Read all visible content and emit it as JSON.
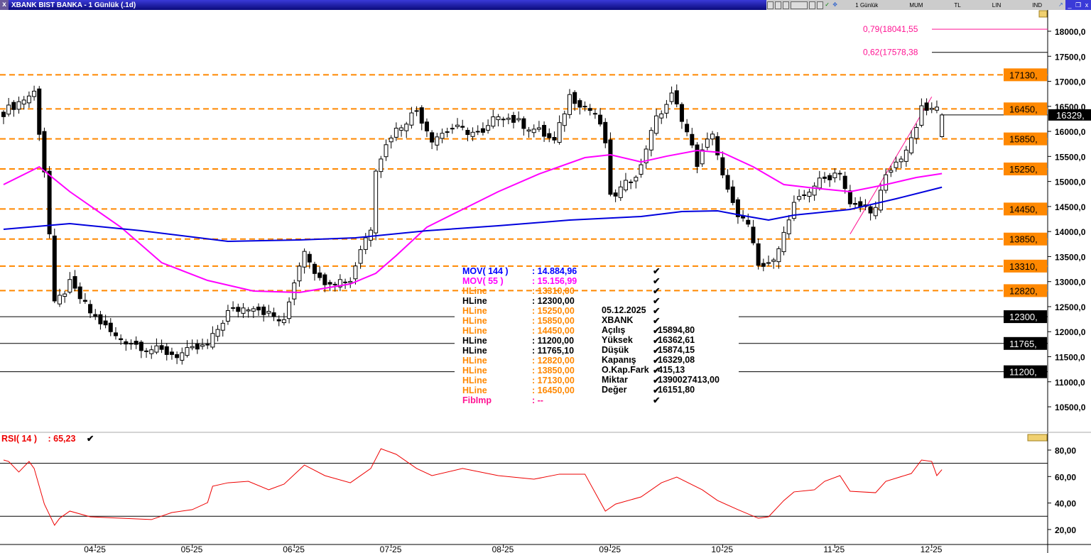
{
  "window": {
    "title": "XBANK BIST BANKA - 1 Günlük (.1d)",
    "toolbar": [
      "1 Günlük",
      "MUM",
      "TL",
      "LIN",
      "IND"
    ],
    "close": "x"
  },
  "legend": [
    {
      "name": "MOV( 144 )",
      "value": ": 14.884,96",
      "color": "#0000ff"
    },
    {
      "name": "MOV( 55 )",
      "value": ": 15.156,99",
      "color": "#ff00ff"
    },
    {
      "name": "HLine",
      "value": ": 13310,00",
      "color": "#ff8800"
    },
    {
      "name": "HLine",
      "value": ": 12300,00",
      "color": "#000000"
    },
    {
      "name": "HLine",
      "value": ": 15250,00",
      "color": "#ff8800"
    },
    {
      "name": "HLine",
      "value": ": 15850,00",
      "color": "#ff8800"
    },
    {
      "name": "HLine",
      "value": ": 14450,00",
      "color": "#ff8800"
    },
    {
      "name": "HLine",
      "value": ": 11200,00",
      "color": "#000000"
    },
    {
      "name": "HLine",
      "value": ": 11765,10",
      "color": "#000000"
    },
    {
      "name": "HLine",
      "value": ": 12820,00",
      "color": "#ff8800"
    },
    {
      "name": "HLine",
      "value": ": 13850,00",
      "color": "#ff8800"
    },
    {
      "name": "HLine",
      "value": ": 17130,00",
      "color": "#ff8800"
    },
    {
      "name": "HLine",
      "value": ": 16450,00",
      "color": "#ff8800"
    },
    {
      "name": "FibImp",
      "value": ": --",
      "color": "#ff1493"
    }
  ],
  "info": {
    "date": "05.12.2025",
    "symbol": "XBANK",
    "rows": [
      {
        "k": "Açılış",
        "v": "15894,80"
      },
      {
        "k": "Yüksek",
        "v": "16362,61"
      },
      {
        "k": "Düşük",
        "v": "15874,15"
      },
      {
        "k": "Kapanış",
        "v": "16329,08"
      },
      {
        "k": "O.Kap.Fark",
        "v": "415,13"
      },
      {
        "k": "Miktar",
        "v": "1390027413,00"
      },
      {
        "k": "Değer",
        "v": "16151,80"
      }
    ]
  },
  "rsi": {
    "label": "RSI( 14 )",
    "value": ": 65,23"
  },
  "chart_data": {
    "type": "candlestick",
    "title": "XBANK BIST BANKA - 1 Günlük (.1d)",
    "ylim": [
      10200,
      18300
    ],
    "y_ticks": [
      "18000,0",
      "17500,0",
      "17000,0",
      "16500,0",
      "16000,0",
      "15500,0",
      "15000,0",
      "14500,0",
      "14000,0",
      "13500,0",
      "13000,0",
      "12500,0",
      "12000,0",
      "11500,0",
      "11000,0",
      "10500,0"
    ],
    "y_tick_values": [
      18000,
      17500,
      17000,
      16500,
      16000,
      15500,
      15000,
      14500,
      14000,
      13500,
      13000,
      12500,
      12000,
      11500,
      11000,
      10500
    ],
    "days": 185,
    "x_ticks": [
      {
        "i": 18,
        "label": "04-25"
      },
      {
        "i": 37,
        "label": "05-25"
      },
      {
        "i": 57,
        "label": "06-25"
      },
      {
        "i": 76,
        "label": "07-25"
      },
      {
        "i": 98,
        "label": "08-25"
      },
      {
        "i": 119,
        "label": "09-25"
      },
      {
        "i": 141,
        "label": "10-25"
      },
      {
        "i": 163,
        "label": "11-25"
      },
      {
        "i": 182,
        "label": "12-25"
      }
    ],
    "close_keypoints": [
      [
        0,
        16384
      ],
      [
        6,
        16781
      ],
      [
        8,
        15221
      ],
      [
        9,
        13945
      ],
      [
        10,
        12528
      ],
      [
        13,
        12953
      ],
      [
        17,
        12386
      ],
      [
        22,
        11890
      ],
      [
        28,
        11677
      ],
      [
        34,
        11535
      ],
      [
        40,
        11720
      ],
      [
        44,
        12386
      ],
      [
        49,
        12528
      ],
      [
        55,
        12173
      ],
      [
        57,
        13024
      ],
      [
        59,
        13662
      ],
      [
        62,
        13024
      ],
      [
        68,
        13024
      ],
      [
        70,
        13662
      ],
      [
        72,
        14087
      ],
      [
        73,
        15292
      ],
      [
        76,
        15930
      ],
      [
        81,
        16426
      ],
      [
        84,
        15859
      ],
      [
        88,
        16072
      ],
      [
        94,
        15930
      ],
      [
        97,
        16355
      ],
      [
        105,
        16001
      ],
      [
        108,
        15788
      ],
      [
        111,
        16710
      ],
      [
        116,
        16355
      ],
      [
        118,
        15788
      ],
      [
        119,
        14654
      ],
      [
        122,
        14938
      ],
      [
        125,
        15292
      ],
      [
        127,
        16072
      ],
      [
        131,
        16710
      ],
      [
        133,
        16285
      ],
      [
        136,
        15363
      ],
      [
        139,
        16001
      ],
      [
        141,
        15080
      ],
      [
        143,
        14512
      ],
      [
        146,
        14087
      ],
      [
        148,
        13307
      ],
      [
        150,
        13307
      ],
      [
        153,
        13945
      ],
      [
        155,
        14512
      ],
      [
        159,
        14938
      ],
      [
        164,
        15221
      ],
      [
        166,
        14512
      ],
      [
        171,
        14441
      ],
      [
        173,
        15080
      ],
      [
        178,
        15788
      ],
      [
        180,
        16426
      ],
      [
        183,
        16426
      ]
    ],
    "last_candle": {
      "open": 15894.8,
      "high": 16362.61,
      "low": 15874.15,
      "close": 16329.08
    },
    "ma144": [
      [
        0,
        14045
      ],
      [
        13,
        14158
      ],
      [
        27,
        14016
      ],
      [
        44,
        13804
      ],
      [
        58,
        13832
      ],
      [
        69,
        13875
      ],
      [
        83,
        14016
      ],
      [
        97,
        14115
      ],
      [
        111,
        14229
      ],
      [
        125,
        14300
      ],
      [
        133,
        14399
      ],
      [
        140,
        14413
      ],
      [
        146,
        14300
      ],
      [
        150,
        14229
      ],
      [
        155,
        14328
      ],
      [
        166,
        14442
      ],
      [
        175,
        14654
      ],
      [
        184,
        14885
      ]
    ],
    "ma55": [
      [
        0,
        14938
      ],
      [
        7,
        15292
      ],
      [
        13,
        14796
      ],
      [
        23,
        14087
      ],
      [
        31,
        13378
      ],
      [
        40,
        13024
      ],
      [
        49,
        12811
      ],
      [
        58,
        12783
      ],
      [
        68,
        12953
      ],
      [
        73,
        13166
      ],
      [
        77,
        13520
      ],
      [
        83,
        14087
      ],
      [
        90,
        14442
      ],
      [
        97,
        14796
      ],
      [
        105,
        15150
      ],
      [
        114,
        15476
      ],
      [
        119,
        15533
      ],
      [
        125,
        15391
      ],
      [
        130,
        15504
      ],
      [
        136,
        15618
      ],
      [
        141,
        15575
      ],
      [
        147,
        15292
      ],
      [
        153,
        14938
      ],
      [
        159,
        14867
      ],
      [
        166,
        14796
      ],
      [
        173,
        14938
      ],
      [
        179,
        15080
      ],
      [
        184,
        15157
      ]
    ],
    "hlines": [
      {
        "value": 17130,
        "label": "17130,",
        "style": "dashed",
        "color": "#ff8800"
      },
      {
        "value": 16450,
        "label": "16450,",
        "style": "dashed",
        "color": "#ff8800"
      },
      {
        "value": 15850,
        "label": "15850,",
        "style": "dashed",
        "color": "#ff8800"
      },
      {
        "value": 15250,
        "label": "15250,",
        "style": "dashed",
        "color": "#ff8800"
      },
      {
        "value": 14450,
        "label": "14450,",
        "style": "dashed",
        "color": "#ff8800"
      },
      {
        "value": 13850,
        "label": "13850,",
        "style": "dashed",
        "color": "#ff8800"
      },
      {
        "value": 13310,
        "label": "13310,",
        "style": "dashed",
        "color": "#ff8800"
      },
      {
        "value": 12820,
        "label": "12820,",
        "style": "dashed",
        "color": "#ff8800"
      },
      {
        "value": 12300,
        "label": "12300,",
        "style": "solid",
        "color": "#000000"
      },
      {
        "value": 11765.1,
        "label": "11765,",
        "style": "solid",
        "color": "#000000"
      },
      {
        "value": 11200,
        "label": "11200,",
        "style": "solid",
        "color": "#000000"
      }
    ],
    "fib": {
      "line": [
        [
          166,
          13950
        ],
        [
          182,
          16690
        ]
      ],
      "levels": [
        {
          "value": 18041.55,
          "label": "0,79(18041,55"
        },
        {
          "value": 17578.38,
          "label": "0,62(17578,38"
        }
      ],
      "color": "#ff1493"
    },
    "current_price_label": "16329,",
    "rsi": {
      "ylim": [
        10,
        90
      ],
      "y_ticks": [
        "80,00",
        "60,00",
        "40,00",
        "20,00"
      ],
      "y_tick_values": [
        80,
        60,
        40,
        20
      ],
      "bands": [
        70,
        30
      ],
      "points": [
        [
          0,
          72.5
        ],
        [
          1,
          71.4
        ],
        [
          3,
          63.4
        ],
        [
          5,
          71.4
        ],
        [
          6,
          66.1
        ],
        [
          8,
          39.2
        ],
        [
          10,
          23.2
        ],
        [
          11,
          28.5
        ],
        [
          13,
          33.9
        ],
        [
          17,
          29.6
        ],
        [
          23,
          28.5
        ],
        [
          29,
          27.5
        ],
        [
          33,
          32.8
        ],
        [
          37,
          35
        ],
        [
          40,
          40.3
        ],
        [
          41,
          52.7
        ],
        [
          44,
          55.3
        ],
        [
          48,
          56.4
        ],
        [
          52,
          50
        ],
        [
          55,
          54.3
        ],
        [
          59,
          68.7
        ],
        [
          63,
          60.7
        ],
        [
          68,
          55.3
        ],
        [
          72,
          66.1
        ],
        [
          74,
          81
        ],
        [
          77,
          76.8
        ],
        [
          81,
          66.1
        ],
        [
          84,
          60.7
        ],
        [
          90,
          66.1
        ],
        [
          97,
          60.7
        ],
        [
          104,
          58
        ],
        [
          109,
          61.8
        ],
        [
          114,
          61.8
        ],
        [
          118,
          33.9
        ],
        [
          120,
          39.2
        ],
        [
          125,
          44.6
        ],
        [
          129,
          55.3
        ],
        [
          132,
          59.6
        ],
        [
          137,
          50
        ],
        [
          140,
          41.9
        ],
        [
          144,
          35
        ],
        [
          148,
          28.5
        ],
        [
          150,
          29.6
        ],
        [
          153,
          41.9
        ],
        [
          155,
          48.4
        ],
        [
          159,
          50
        ],
        [
          161,
          56.4
        ],
        [
          164,
          60.7
        ],
        [
          166,
          48.9
        ],
        [
          171,
          47.8
        ],
        [
          173,
          56.4
        ],
        [
          178,
          62.3
        ],
        [
          180,
          72.5
        ],
        [
          182,
          71.4
        ],
        [
          183,
          60.7
        ],
        [
          184,
          65.23
        ]
      ]
    }
  }
}
